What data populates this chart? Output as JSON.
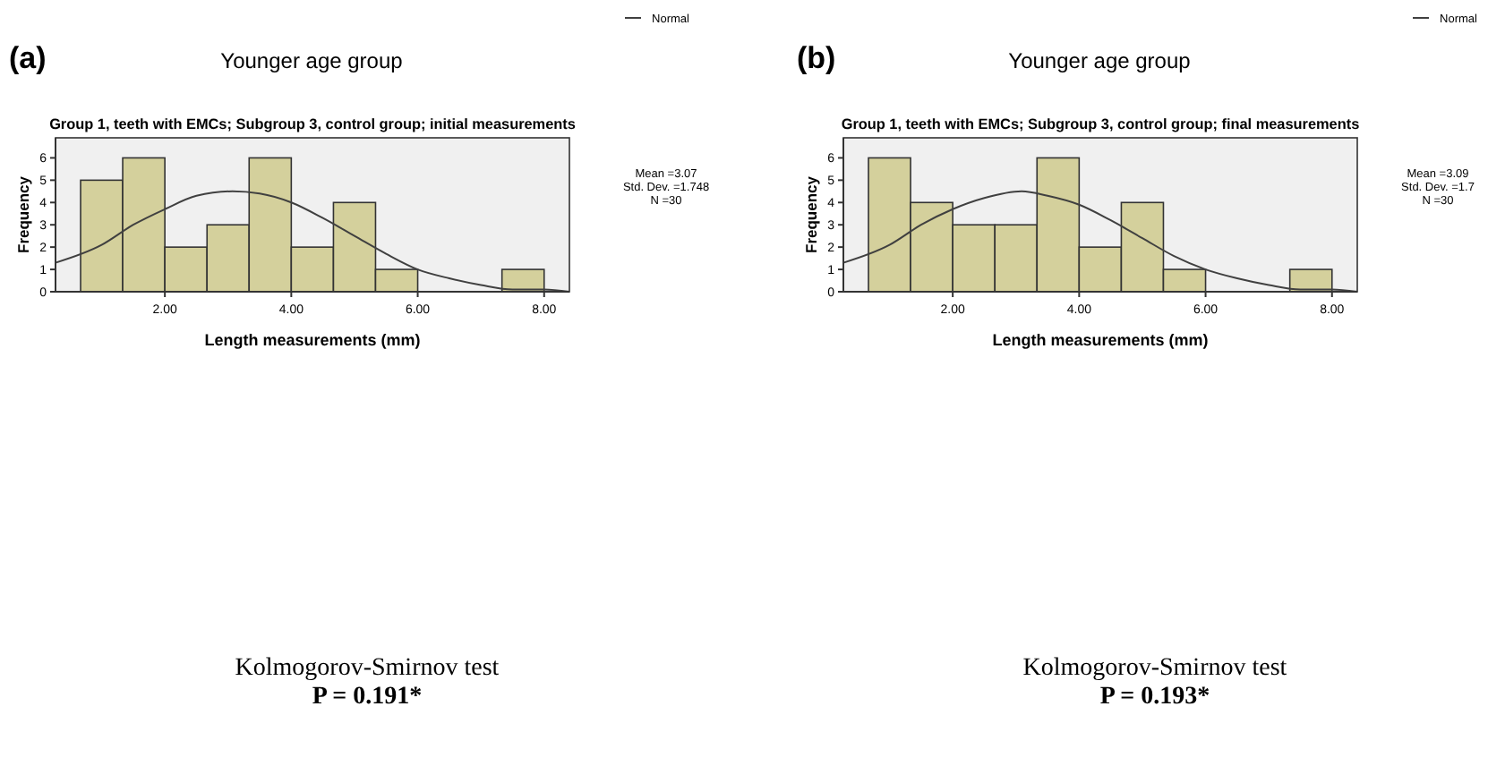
{
  "chart_data": [
    {
      "type": "histogram",
      "title": "Younger age group",
      "subtitle": "Group 1, teeth with EMCs; Subgroup 3, control group; initial measurements",
      "xlabel": "Length measurements (mm)",
      "ylabel": "Frequency",
      "bins": [
        0.667,
        1.333,
        2,
        2.667,
        3.333,
        4,
        4.667,
        5.333,
        6,
        6.667,
        7.333,
        8
      ],
      "series": [
        {
          "color": "#d4d09c",
          "values": [
            5,
            6,
            2,
            3,
            6,
            2,
            4,
            1,
            0,
            0,
            1
          ]
        },
        {
          "type": "line",
          "name": "Normal",
          "color": "#404040",
          "x": [
            0.27,
            1,
            1.5,
            2,
            2.5,
            3.07,
            3.5,
            4,
            4.5,
            5,
            5.5,
            6,
            6.5,
            7,
            7.5,
            8,
            8.4
          ],
          "values": [
            1.3,
            2.1,
            3.0,
            3.7,
            4.3,
            4.5,
            4.4,
            4.0,
            3.3,
            2.5,
            1.7,
            1.0,
            0.6,
            0.3,
            0.1,
            0.1,
            0.0
          ]
        }
      ],
      "xlim": [
        0.27,
        8.4
      ],
      "xticks": [
        {
          "value": 2,
          "label": "2.00"
        },
        {
          "value": 4,
          "label": "4.00"
        },
        {
          "value": 6,
          "label": "6.00"
        },
        {
          "value": 8,
          "label": "8.00"
        }
      ],
      "ylim": [
        0,
        6.9
      ],
      "yticks": [
        0,
        1,
        2,
        3,
        4,
        5,
        6
      ],
      "legend": "top right",
      "marker": "none",
      "line_style": "solid",
      "annotations": [
        "(a)",
        "Mean =3.07",
        "Std. Dev. =1.748",
        "N =30",
        "Kolmogorov-Smirnov test",
        "P = 0.191*"
      ]
    },
    {
      "type": "histogram",
      "title": "Younger age group",
      "subtitle": "Group 1, teeth with EMCs; Subgroup 3, control group; final measurements",
      "xlabel": "Length measurements (mm)",
      "ylabel": "Frequency",
      "bins": [
        0.667,
        1.333,
        2,
        2.667,
        3.333,
        4,
        4.667,
        5.333,
        6,
        6.667,
        7.333,
        8
      ],
      "series": [
        {
          "color": "#d4d09c",
          "values": [
            6,
            4,
            3,
            3,
            6,
            2,
            4,
            1,
            0,
            0,
            1
          ]
        },
        {
          "type": "line",
          "name": "Normal",
          "color": "#404040",
          "x": [
            0.27,
            1,
            1.5,
            2,
            2.5,
            3.09,
            3.5,
            4,
            4.5,
            5,
            5.5,
            6,
            6.5,
            7,
            7.5,
            8,
            8.4
          ],
          "values": [
            1.3,
            2.1,
            3.0,
            3.7,
            4.2,
            4.5,
            4.3,
            3.9,
            3.2,
            2.4,
            1.6,
            1.0,
            0.6,
            0.3,
            0.1,
            0.1,
            0.0
          ]
        }
      ],
      "xlim": [
        0.27,
        8.4
      ],
      "xticks": [
        {
          "value": 2,
          "label": "2.00"
        },
        {
          "value": 4,
          "label": "4.00"
        },
        {
          "value": 6,
          "label": "6.00"
        },
        {
          "value": 8,
          "label": "8.00"
        }
      ],
      "ylim": [
        0,
        6.9
      ],
      "yticks": [
        0,
        1,
        2,
        3,
        4,
        5,
        6
      ],
      "legend": "top right",
      "marker": "none",
      "line_style": "solid",
      "annotations": [
        "(b)",
        "Mean =3.09",
        "Std. Dev. =1.7",
        "N =30",
        "Kolmogorov-Smirnov test",
        "P = 0.193*"
      ]
    }
  ]
}
